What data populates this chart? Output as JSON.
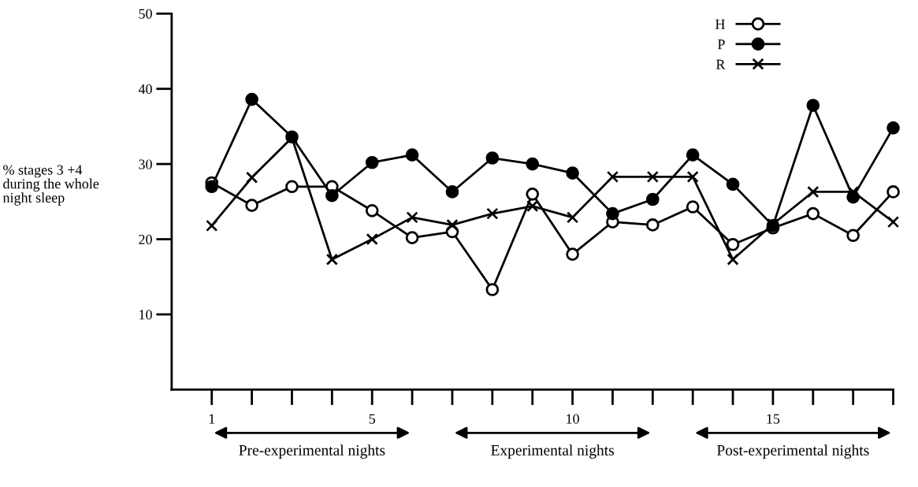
{
  "chart_data": {
    "type": "line",
    "ylabel": "% stages 3 +4\nduring the whole\nnight sleep",
    "x": [
      1,
      2,
      3,
      4,
      5,
      6,
      7,
      8,
      9,
      10,
      11,
      12,
      13,
      14,
      15,
      16,
      17,
      18
    ],
    "series": [
      {
        "name": "H",
        "color": "#000000",
        "marker": "open_circle",
        "values": [
          27.5,
          24.5,
          27,
          27,
          23.8,
          20.2,
          21,
          13.3,
          26,
          18,
          22.3,
          21.9,
          24.3,
          19.3,
          21.5,
          23.4,
          20.5,
          26.3
        ]
      },
      {
        "name": "P",
        "color": "#000000",
        "marker": "circle",
        "values": [
          27,
          38.6,
          33.6,
          25.8,
          30.2,
          31.2,
          26.3,
          30.8,
          30,
          28.8,
          23.4,
          25.3,
          31.2,
          27.3,
          21.8,
          37.8,
          25.6,
          34.8
        ]
      },
      {
        "name": "R",
        "color": "#000000",
        "marker": "cross",
        "values": [
          21.8,
          28.2,
          33.5,
          17.3,
          20,
          22.9,
          21.9,
          23.4,
          24.4,
          22.9,
          28.3,
          28.3,
          28.3,
          17.3,
          22,
          26.3,
          26.3,
          22.3
        ]
      }
    ],
    "xlim": [
      0,
      18
    ],
    "xticks": [
      1,
      5,
      10,
      15
    ],
    "ylim": [
      0,
      50
    ],
    "yticks": [
      10,
      20,
      30,
      40,
      50
    ],
    "annotations": [
      "Pre-experimental nights",
      "Experimental nights",
      "Post-experimental nights"
    ],
    "legend": "top right",
    "grid": false,
    "line_style": "solid"
  }
}
